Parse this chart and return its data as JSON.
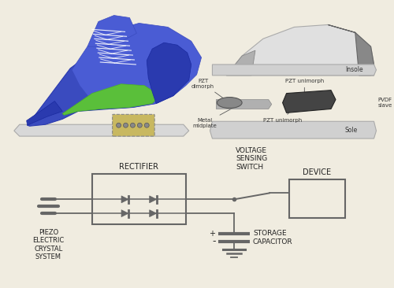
{
  "bg_color": "#f0ece0",
  "circuit_gray": "#666666",
  "circuit_text": "#222222",
  "shoe_dark_blue": "#3a4bbf",
  "shoe_mid_blue": "#4a5cd4",
  "shoe_green": "#5abf3a",
  "shoe_heel_blue": "#2a3aaf",
  "labels": {
    "piezo": "PIEZO\nELECTRIC\nCRYSTAL\nSYSTEM",
    "rectifier": "RECTIFIER",
    "voltage_sensing": "VOLTAGE\nSENSING\nSWITCH",
    "device": "DEVICE",
    "storage": "STORAGE\nCAPACITOR",
    "insole": "Insole",
    "sole": "Sole",
    "pzt_dimorph": "PZT\ndimorph",
    "pzt_unimorph1": "PZT unimorph",
    "pzt_unimorph2": "PZT unimorph",
    "metal_midplate": "Metal\nmidplate",
    "pvdf_slave": "PVDF\nslave"
  }
}
